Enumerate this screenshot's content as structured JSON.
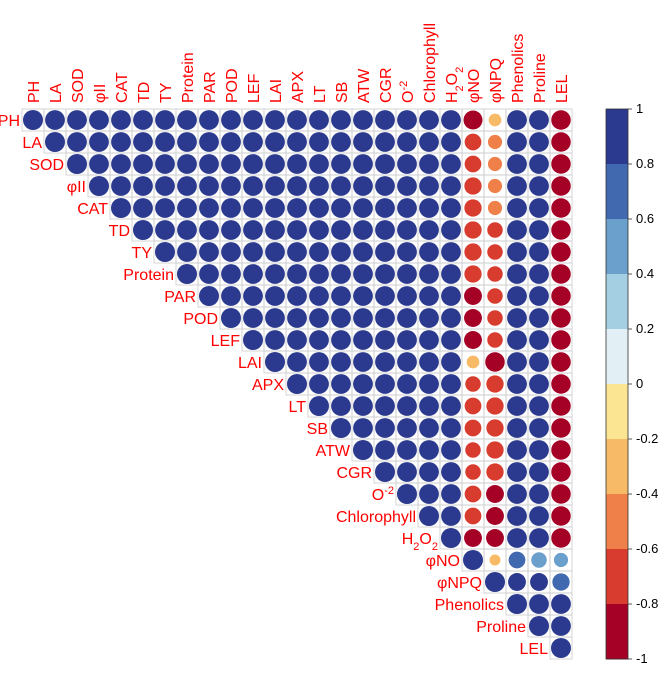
{
  "chart_data": {
    "type": "heatmap",
    "subtype": "correlation-matrix-upper-circles",
    "variables": [
      {
        "key": "PH",
        "label": "PH"
      },
      {
        "key": "LA",
        "label": "LA"
      },
      {
        "key": "SOD",
        "label": "SOD"
      },
      {
        "key": "phiII",
        "label": "II",
        "prefix": "φ"
      },
      {
        "key": "CAT",
        "label": "CAT"
      },
      {
        "key": "TD",
        "label": "TD"
      },
      {
        "key": "TY",
        "label": "TY"
      },
      {
        "key": "Protein",
        "label": "Protein"
      },
      {
        "key": "PAR",
        "label": "PAR"
      },
      {
        "key": "POD",
        "label": "POD"
      },
      {
        "key": "LEF",
        "label": "LEF"
      },
      {
        "key": "LAI",
        "label": "LAI"
      },
      {
        "key": "APX",
        "label": "APX"
      },
      {
        "key": "LT",
        "label": "LT"
      },
      {
        "key": "SB",
        "label": "SB"
      },
      {
        "key": "ATW",
        "label": "ATW"
      },
      {
        "key": "CGR",
        "label": "CGR"
      },
      {
        "key": "O2",
        "label": "O",
        "sup": "-2"
      },
      {
        "key": "Chlorophyll",
        "label": "Chlorophyll"
      },
      {
        "key": "H2O2",
        "label": "H",
        "sub": "2",
        "label2": "O",
        "sub2": "2"
      },
      {
        "key": "phiNO",
        "label": "NO",
        "prefix": "φ"
      },
      {
        "key": "phiNPQ",
        "label": "NPQ",
        "prefix": "φ"
      },
      {
        "key": "Phenolics",
        "label": "Phenolics"
      },
      {
        "key": "Proline",
        "label": "Proline"
      },
      {
        "key": "LEL",
        "label": "LEL"
      }
    ],
    "matrix_upper": [
      [
        1.0,
        0.98,
        0.98,
        0.98,
        0.98,
        0.98,
        0.98,
        0.98,
        0.98,
        0.98,
        0.98,
        0.98,
        0.98,
        0.98,
        0.98,
        0.98,
        0.98,
        0.98,
        0.98,
        0.98,
        -0.9,
        -0.4,
        0.98,
        0.98,
        -0.95
      ],
      [
        1.0,
        0.98,
        0.98,
        0.98,
        0.98,
        0.98,
        0.98,
        0.98,
        0.98,
        0.98,
        0.98,
        0.98,
        0.98,
        0.98,
        0.98,
        0.98,
        0.98,
        0.98,
        0.98,
        -0.7,
        -0.5,
        0.98,
        0.98,
        -0.95
      ],
      [
        1.0,
        0.98,
        0.98,
        0.98,
        0.98,
        0.98,
        0.98,
        0.98,
        0.98,
        0.98,
        0.98,
        0.98,
        0.98,
        0.98,
        0.98,
        0.98,
        0.98,
        0.98,
        -0.7,
        -0.5,
        0.98,
        0.98,
        -0.95
      ],
      [
        1.0,
        0.98,
        0.98,
        0.98,
        0.98,
        0.98,
        0.98,
        0.98,
        0.98,
        0.98,
        0.98,
        0.98,
        0.98,
        0.98,
        0.98,
        0.98,
        0.98,
        -0.75,
        -0.5,
        0.98,
        0.98,
        -0.95
      ],
      [
        1.0,
        0.98,
        0.98,
        0.98,
        0.98,
        0.98,
        0.98,
        0.98,
        0.98,
        0.98,
        0.98,
        0.98,
        0.98,
        0.98,
        0.98,
        0.98,
        -0.75,
        -0.5,
        0.98,
        0.98,
        -0.95
      ],
      [
        1.0,
        0.98,
        0.98,
        0.98,
        0.98,
        0.98,
        0.98,
        0.98,
        0.98,
        0.98,
        0.98,
        0.98,
        0.98,
        0.98,
        0.98,
        -0.75,
        -0.6,
        0.98,
        0.98,
        -0.95
      ],
      [
        1.0,
        0.98,
        0.98,
        0.98,
        0.98,
        0.98,
        0.98,
        0.98,
        0.98,
        0.98,
        0.98,
        0.98,
        0.98,
        0.98,
        -0.75,
        -0.6,
        0.98,
        0.98,
        -0.95
      ],
      [
        1.0,
        0.98,
        0.98,
        0.98,
        0.98,
        0.98,
        0.98,
        0.98,
        0.98,
        0.98,
        0.98,
        0.98,
        0.98,
        -0.75,
        -0.6,
        0.98,
        0.98,
        -0.95
      ],
      [
        1.0,
        0.98,
        0.98,
        0.98,
        0.98,
        0.98,
        0.98,
        0.98,
        0.98,
        0.98,
        0.98,
        0.98,
        -0.8,
        -0.6,
        0.98,
        0.98,
        -0.95
      ],
      [
        1.0,
        0.98,
        0.98,
        0.98,
        0.98,
        0.98,
        0.98,
        0.98,
        0.98,
        0.98,
        0.98,
        -0.8,
        -0.6,
        0.98,
        0.98,
        -0.95
      ],
      [
        1.0,
        0.98,
        0.98,
        0.98,
        0.98,
        0.98,
        0.98,
        0.98,
        0.98,
        0.98,
        -0.8,
        -0.6,
        0.98,
        0.98,
        -0.95
      ],
      [
        1.0,
        0.98,
        0.98,
        0.98,
        0.98,
        0.98,
        0.98,
        0.98,
        0.98,
        -0.4,
        -0.95,
        0.98,
        0.98,
        -0.95
      ],
      [
        1.0,
        0.98,
        0.98,
        0.98,
        0.98,
        0.98,
        0.98,
        0.98,
        -0.6,
        -0.75,
        0.98,
        0.98,
        -0.95
      ],
      [
        1.0,
        0.98,
        0.98,
        0.98,
        0.98,
        0.98,
        0.98,
        -0.7,
        -0.75,
        0.98,
        0.98,
        -0.95
      ],
      [
        1.0,
        0.98,
        0.98,
        0.98,
        0.98,
        0.98,
        -0.7,
        -0.75,
        0.98,
        0.98,
        -0.95
      ],
      [
        1.0,
        0.98,
        0.98,
        0.98,
        0.98,
        -0.6,
        -0.75,
        0.98,
        0.98,
        -0.95
      ],
      [
        1.0,
        0.98,
        0.98,
        0.98,
        -0.6,
        -0.75,
        0.98,
        0.98,
        -0.95
      ],
      [
        1.0,
        0.98,
        0.98,
        -0.7,
        -0.8,
        0.98,
        0.98,
        -0.95
      ],
      [
        1.0,
        0.98,
        -0.7,
        -0.8,
        0.98,
        0.98,
        -0.95
      ],
      [
        1.0,
        -0.8,
        -0.8,
        0.98,
        0.98,
        -0.95
      ],
      [
        1.0,
        -0.3,
        0.7,
        0.6,
        0.5
      ],
      [
        1.0,
        0.8,
        0.8,
        0.75
      ],
      [
        1.0,
        0.98,
        0.98
      ],
      [
        1.0,
        0.98
      ],
      [
        1.0
      ]
    ],
    "colorbar": {
      "min": -1,
      "max": 1,
      "ticks": [
        "1",
        "0.8",
        "0.6",
        "0.4",
        "0.2",
        "0",
        "-0.2",
        "-0.4",
        "-0.6",
        "-0.8",
        "-1"
      ],
      "colors_top_to_bottom": [
        "#2b3a8e",
        "#4169b0",
        "#6b9fcc",
        "#a4cfe3",
        "#e2f0f5",
        "#fbe593",
        "#f7ba66",
        "#f08049",
        "#d83c2e",
        "#a50026"
      ]
    },
    "grid": true,
    "label_color": "#ff0000"
  }
}
